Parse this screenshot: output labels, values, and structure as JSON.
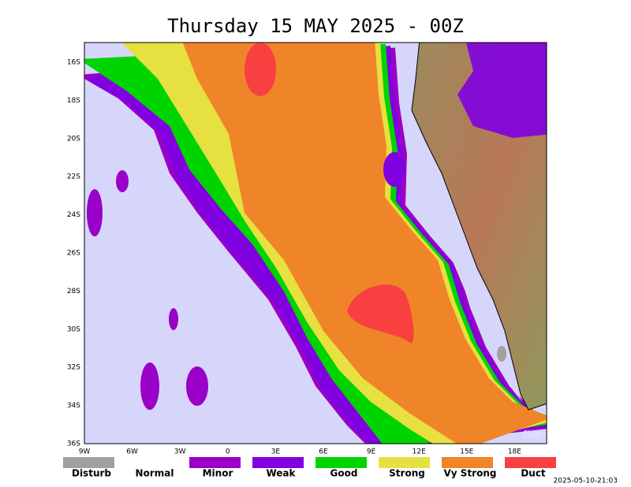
{
  "title": "Thursday 15 MAY 2025 - 00Z",
  "latitude_labels": [
    "16S",
    "18S",
    "20S",
    "22S",
    "24S",
    "26S",
    "28S",
    "30S",
    "32S",
    "34S",
    "36S"
  ],
  "longitude_labels": [
    "9W",
    "6W",
    "3W",
    "0",
    "3E",
    "6E",
    "9E",
    "12E",
    "15E",
    "18E"
  ],
  "legend": [
    {
      "label": "Disturb",
      "color": "#a0a0a0"
    },
    {
      "label": "Normal"
    },
    {
      "label": "Minor",
      "color": "#9a00c8"
    },
    {
      "label": "Weak",
      "color": "#8000e0"
    },
    {
      "label": "Good",
      "color": "#00d400"
    },
    {
      "label": "Strong",
      "color": "#e6e040"
    },
    {
      "label": "Vy Strong",
      "color": "#f08428"
    },
    {
      "label": "Duct",
      "color": "#f84040"
    }
  ],
  "watermark": "f5len",
  "timestamp": "2025-05-10-21:03"
}
